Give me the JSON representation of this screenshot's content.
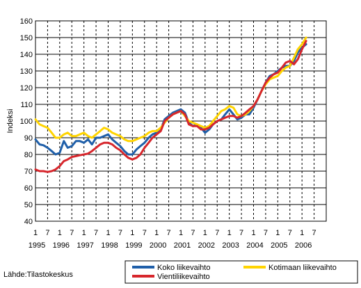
{
  "chart_data": {
    "type": "line",
    "title": "",
    "xlabel": "",
    "ylabel": "Indeksi",
    "ylim": [
      40,
      160
    ],
    "yticks": [
      40,
      50,
      60,
      70,
      80,
      90,
      100,
      110,
      120,
      130,
      140,
      150,
      160
    ],
    "xlim": [
      1995.0,
      2007.0
    ],
    "month_tick_labels": [
      "1",
      "7"
    ],
    "year_labels": [
      "1995",
      "1996",
      "1997",
      "1998",
      "1999",
      "2000",
      "2001",
      "2002",
      "2003",
      "2004",
      "2005",
      "2006"
    ],
    "grid": "vertical dashed at 1 and 7 months, horizontal solid at each y tick",
    "legend_position": "bottom-right",
    "series": [
      {
        "name": "Koko liikevaihto",
        "color": "#1f5fa9",
        "points": [
          [
            1995.0,
            89
          ],
          [
            1995.17,
            86
          ],
          [
            1995.33,
            85.5
          ],
          [
            1995.5,
            84
          ],
          [
            1995.67,
            82
          ],
          [
            1995.83,
            80
          ],
          [
            1996.0,
            81
          ],
          [
            1996.17,
            88
          ],
          [
            1996.33,
            84
          ],
          [
            1996.5,
            85
          ],
          [
            1996.67,
            88
          ],
          [
            1996.83,
            88
          ],
          [
            1997.0,
            87
          ],
          [
            1997.17,
            89
          ],
          [
            1997.33,
            86
          ],
          [
            1997.5,
            90
          ],
          [
            1997.67,
            90
          ],
          [
            1997.83,
            91
          ],
          [
            1998.0,
            92
          ],
          [
            1998.17,
            89
          ],
          [
            1998.33,
            87
          ],
          [
            1998.5,
            85
          ],
          [
            1998.67,
            82
          ],
          [
            1998.83,
            80
          ],
          [
            1999.0,
            80
          ],
          [
            1999.17,
            83
          ],
          [
            1999.33,
            85
          ],
          [
            1999.5,
            87
          ],
          [
            1999.67,
            90
          ],
          [
            1999.83,
            92
          ],
          [
            2000.0,
            93
          ],
          [
            2000.17,
            95
          ],
          [
            2000.33,
            101
          ],
          [
            2000.5,
            103
          ],
          [
            2000.67,
            105
          ],
          [
            2000.83,
            106
          ],
          [
            2001.0,
            107
          ],
          [
            2001.17,
            105
          ],
          [
            2001.33,
            99
          ],
          [
            2001.5,
            97
          ],
          [
            2001.67,
            98
          ],
          [
            2001.83,
            96
          ],
          [
            2002.0,
            93
          ],
          [
            2002.17,
            95
          ],
          [
            2002.33,
            98
          ],
          [
            2002.5,
            100
          ],
          [
            2002.67,
            101
          ],
          [
            2002.83,
            104
          ],
          [
            2003.0,
            107
          ],
          [
            2003.17,
            104
          ],
          [
            2003.33,
            101
          ],
          [
            2003.5,
            102
          ],
          [
            2003.67,
            104
          ],
          [
            2003.83,
            104
          ],
          [
            2004.0,
            108
          ],
          [
            2004.17,
            113
          ],
          [
            2004.33,
            118
          ],
          [
            2004.5,
            123
          ],
          [
            2004.67,
            127
          ],
          [
            2004.83,
            128
          ],
          [
            2005.0,
            130
          ],
          [
            2005.17,
            132
          ],
          [
            2005.33,
            133
          ],
          [
            2005.5,
            133
          ],
          [
            2005.67,
            136
          ],
          [
            2005.83,
            141
          ],
          [
            2006.0,
            144
          ],
          [
            2006.17,
            146
          ]
        ]
      },
      {
        "name": "Kotimaan liikevaihto",
        "color": "#ffd400",
        "points": [
          [
            1995.0,
            101
          ],
          [
            1995.17,
            98
          ],
          [
            1995.33,
            97
          ],
          [
            1995.5,
            96
          ],
          [
            1995.67,
            93
          ],
          [
            1995.83,
            90
          ],
          [
            1996.0,
            90
          ],
          [
            1996.17,
            92
          ],
          [
            1996.33,
            93
          ],
          [
            1996.5,
            91
          ],
          [
            1996.67,
            91
          ],
          [
            1996.83,
            92
          ],
          [
            1997.0,
            93
          ],
          [
            1997.17,
            91
          ],
          [
            1997.33,
            90
          ],
          [
            1997.5,
            92
          ],
          [
            1997.67,
            94
          ],
          [
            1997.83,
            96
          ],
          [
            1998.0,
            95
          ],
          [
            1998.17,
            93
          ],
          [
            1998.33,
            92
          ],
          [
            1998.5,
            91
          ],
          [
            1998.67,
            89
          ],
          [
            1998.83,
            88
          ],
          [
            1999.0,
            88
          ],
          [
            1999.17,
            89
          ],
          [
            1999.33,
            90
          ],
          [
            1999.5,
            91
          ],
          [
            1999.67,
            93
          ],
          [
            1999.83,
            94
          ],
          [
            2000.0,
            94
          ],
          [
            2000.17,
            96
          ],
          [
            2000.33,
            99
          ],
          [
            2000.5,
            102
          ],
          [
            2000.67,
            104
          ],
          [
            2000.83,
            105
          ],
          [
            2001.0,
            106
          ],
          [
            2001.17,
            103
          ],
          [
            2001.33,
            100
          ],
          [
            2001.5,
            99
          ],
          [
            2001.67,
            98
          ],
          [
            2001.83,
            97
          ],
          [
            2002.0,
            96
          ],
          [
            2002.17,
            97
          ],
          [
            2002.33,
            100
          ],
          [
            2002.5,
            103
          ],
          [
            2002.67,
            106
          ],
          [
            2002.83,
            107
          ],
          [
            2003.0,
            109
          ],
          [
            2003.17,
            108
          ],
          [
            2003.33,
            104
          ],
          [
            2003.5,
            103
          ],
          [
            2003.67,
            104
          ],
          [
            2003.83,
            106
          ],
          [
            2004.0,
            109
          ],
          [
            2004.17,
            113
          ],
          [
            2004.33,
            118
          ],
          [
            2004.5,
            122
          ],
          [
            2004.67,
            125
          ],
          [
            2004.83,
            126
          ],
          [
            2005.0,
            127
          ],
          [
            2005.17,
            130
          ],
          [
            2005.33,
            132
          ],
          [
            2005.5,
            133
          ],
          [
            2005.67,
            138
          ],
          [
            2005.83,
            143
          ],
          [
            2006.0,
            146
          ],
          [
            2006.17,
            150
          ]
        ]
      },
      {
        "name": "Vientiliikevaihto",
        "color": "#d7262c",
        "points": [
          [
            1995.0,
            71
          ],
          [
            1995.17,
            70
          ],
          [
            1995.33,
            70
          ],
          [
            1995.5,
            69.5
          ],
          [
            1995.67,
            70
          ],
          [
            1995.83,
            71
          ],
          [
            1996.0,
            73
          ],
          [
            1996.17,
            76
          ],
          [
            1996.33,
            77
          ],
          [
            1996.5,
            78.5
          ],
          [
            1996.67,
            79
          ],
          [
            1996.83,
            79.5
          ],
          [
            1997.0,
            80
          ],
          [
            1997.17,
            80.5
          ],
          [
            1997.33,
            82
          ],
          [
            1997.5,
            84
          ],
          [
            1997.67,
            86
          ],
          [
            1997.83,
            87
          ],
          [
            1998.0,
            87
          ],
          [
            1998.17,
            86
          ],
          [
            1998.33,
            84
          ],
          [
            1998.5,
            82.5
          ],
          [
            1998.67,
            80
          ],
          [
            1998.83,
            78
          ],
          [
            1999.0,
            77
          ],
          [
            1999.17,
            78
          ],
          [
            1999.33,
            80
          ],
          [
            1999.5,
            84
          ],
          [
            1999.67,
            87
          ],
          [
            1999.83,
            90
          ],
          [
            2000.0,
            92
          ],
          [
            2000.17,
            94
          ],
          [
            2000.33,
            100
          ],
          [
            2000.5,
            102
          ],
          [
            2000.67,
            104
          ],
          [
            2000.83,
            105
          ],
          [
            2001.0,
            106
          ],
          [
            2001.17,
            104
          ],
          [
            2001.33,
            98
          ],
          [
            2001.5,
            97
          ],
          [
            2001.67,
            97
          ],
          [
            2001.83,
            95
          ],
          [
            2002.0,
            95
          ],
          [
            2002.17,
            96
          ],
          [
            2002.33,
            98
          ],
          [
            2002.5,
            100
          ],
          [
            2002.67,
            101
          ],
          [
            2002.83,
            102
          ],
          [
            2003.0,
            103
          ],
          [
            2003.17,
            103
          ],
          [
            2003.33,
            102
          ],
          [
            2003.5,
            103
          ],
          [
            2003.67,
            105
          ],
          [
            2003.83,
            107
          ],
          [
            2004.0,
            109
          ],
          [
            2004.17,
            113
          ],
          [
            2004.33,
            118
          ],
          [
            2004.5,
            123
          ],
          [
            2004.67,
            126
          ],
          [
            2004.83,
            128
          ],
          [
            2005.0,
            129
          ],
          [
            2005.17,
            132
          ],
          [
            2005.33,
            135
          ],
          [
            2005.5,
            136
          ],
          [
            2005.67,
            134
          ],
          [
            2005.83,
            137
          ],
          [
            2006.0,
            143
          ],
          [
            2006.17,
            148
          ]
        ]
      }
    ]
  },
  "source": "Lähde:Tilastokeskus"
}
